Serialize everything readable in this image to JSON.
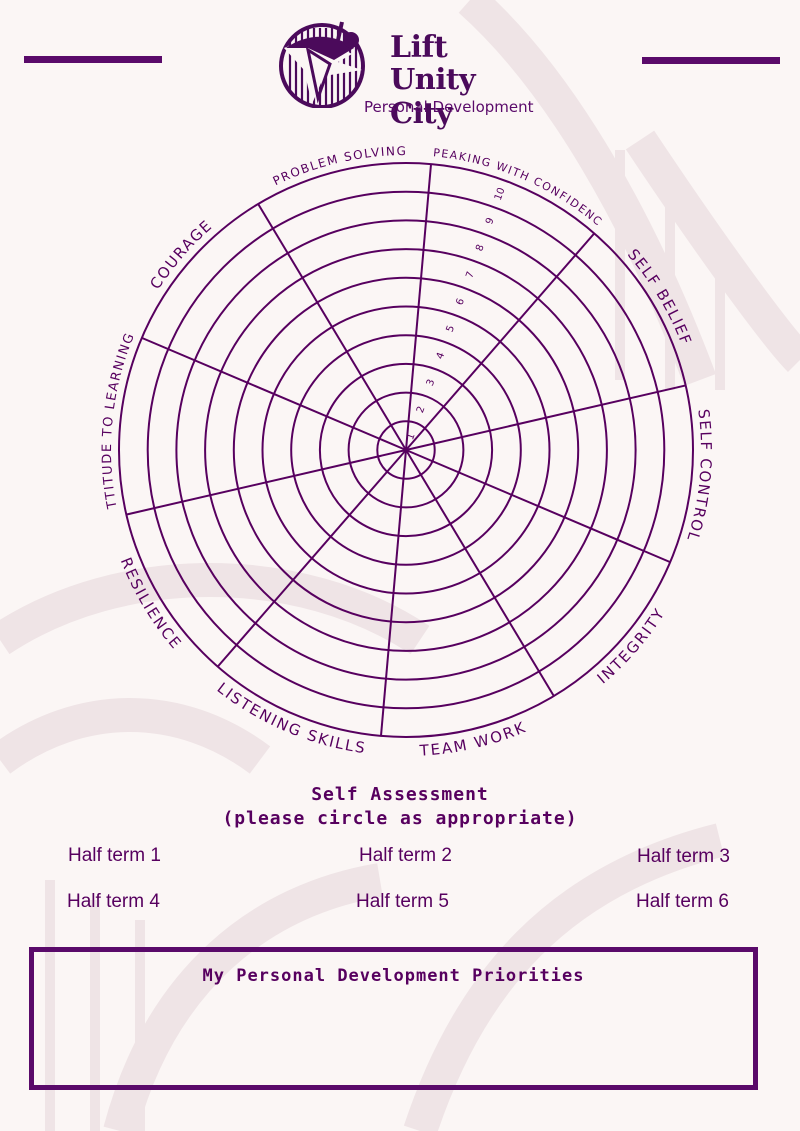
{
  "header": {
    "brand_line1": "Lift",
    "brand_line2": "Unity City",
    "brand_subtitle": "Personal Development"
  },
  "wheel": {
    "segments": [
      "SPEAKING WITH CONFIDENCE",
      "SELF BELIEF",
      "SELF CONTROL",
      "INTEGRITY",
      "TEAM WORK",
      "LISTENING SKILLS",
      "RESILIENCE",
      "ATTITUDE TO LEARNING",
      "COURAGE",
      "PROBLEM SOLVING"
    ],
    "scale": [
      "1",
      "2",
      "3",
      "4",
      "5",
      "6",
      "7",
      "8",
      "9",
      "10"
    ]
  },
  "assessment": {
    "title": "Self Assessment",
    "instruction": "(please circle as appropriate)",
    "terms": [
      "Half term 1",
      "Half term 2",
      "Half term 3",
      "Half term 4",
      "Half term 5",
      "Half term 6"
    ]
  },
  "priorities": {
    "title": "My Personal Development Priorities"
  },
  "colors": {
    "primary": "#57005f",
    "background": "#fbf6f5",
    "decoration": "#efe4e6"
  }
}
